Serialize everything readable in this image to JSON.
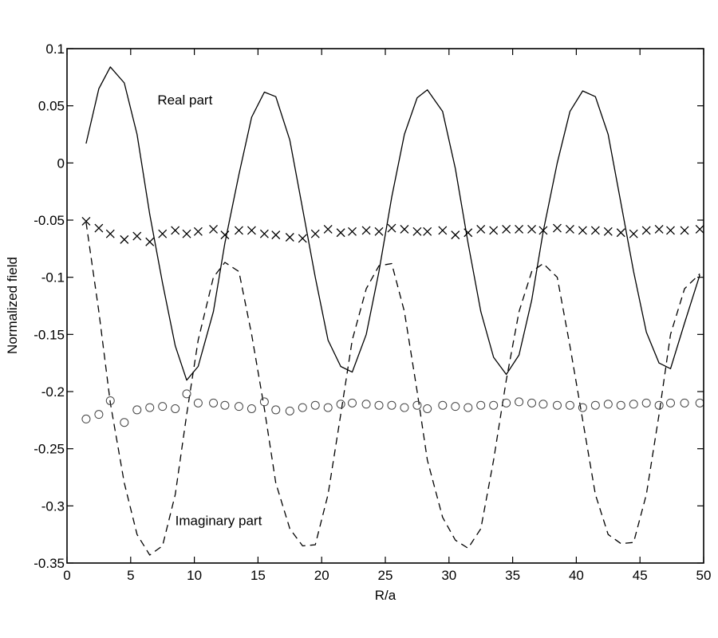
{
  "chart_data": {
    "type": "line",
    "title": "",
    "xlabel": "R/a",
    "ylabel": "Normalized field",
    "xlim": [
      0,
      50
    ],
    "ylim": [
      -0.35,
      0.1
    ],
    "xticks": [
      0,
      5,
      10,
      15,
      20,
      25,
      30,
      35,
      40,
      45,
      50
    ],
    "xtick_labels": [
      "0",
      "5",
      "10",
      "15",
      "20",
      "25",
      "30",
      "35",
      "40",
      "45",
      "50"
    ],
    "yticks": [
      0.1,
      0.05,
      0,
      -0.05,
      -0.1,
      -0.15,
      -0.2,
      -0.25,
      -0.3,
      -0.35
    ],
    "ytick_labels": [
      "0.1",
      "0.05",
      "0",
      "-0.05",
      "-0.1",
      "-0.15",
      "-0.2",
      "-0.25",
      "-0.3",
      "-0.35"
    ],
    "grid": false,
    "legend": null,
    "annotations": [
      {
        "text": "Real part",
        "x": 7.1,
        "y": 0.051
      },
      {
        "text": "Imaginary part",
        "x": 8.5,
        "y": -0.317
      }
    ],
    "x": [
      1.5,
      2.5,
      3.4,
      4.5,
      5.5,
      6.5,
      7.5,
      8.5,
      9.4,
      10.3,
      11.5,
      12.4,
      13.5,
      14.5,
      15.5,
      16.4,
      17.5,
      18.5,
      19.5,
      20.5,
      21.5,
      22.4,
      23.5,
      24.5,
      25.5,
      26.5,
      27.5,
      28.3,
      29.5,
      30.5,
      31.5,
      32.5,
      33.5,
      34.5,
      35.5,
      36.5,
      37.4,
      38.5,
      39.5,
      40.5,
      41.5,
      42.5,
      43.5,
      44.5,
      45.5,
      46.5,
      47.4,
      48.5,
      49.7
    ],
    "series": [
      {
        "name": "Real part",
        "style": "solid",
        "values": [
          0.017,
          0.065,
          0.084,
          0.07,
          0.025,
          -0.045,
          -0.105,
          -0.16,
          -0.19,
          -0.178,
          -0.13,
          -0.07,
          -0.01,
          0.04,
          0.062,
          0.058,
          0.02,
          -0.04,
          -0.1,
          -0.155,
          -0.178,
          -0.183,
          -0.15,
          -0.095,
          -0.03,
          0.025,
          0.057,
          0.064,
          0.045,
          -0.005,
          -0.07,
          -0.13,
          -0.17,
          -0.185,
          -0.168,
          -0.12,
          -0.06,
          0.0,
          0.045,
          0.063,
          0.058,
          0.025,
          -0.035,
          -0.095,
          -0.148,
          -0.175,
          -0.18,
          -0.14,
          -0.098
        ]
      },
      {
        "name": "Imaginary part",
        "style": "dashed",
        "values": [
          -0.052,
          -0.13,
          -0.21,
          -0.28,
          -0.325,
          -0.343,
          -0.335,
          -0.29,
          -0.22,
          -0.155,
          -0.1,
          -0.087,
          -0.095,
          -0.15,
          -0.215,
          -0.28,
          -0.32,
          -0.335,
          -0.334,
          -0.29,
          -0.22,
          -0.155,
          -0.11,
          -0.09,
          -0.088,
          -0.13,
          -0.2,
          -0.26,
          -0.31,
          -0.33,
          -0.337,
          -0.32,
          -0.26,
          -0.19,
          -0.13,
          -0.095,
          -0.088,
          -0.1,
          -0.16,
          -0.225,
          -0.29,
          -0.325,
          -0.333,
          -0.332,
          -0.29,
          -0.22,
          -0.15,
          -0.11,
          -0.097
        ]
      },
      {
        "name": "Real part (markers x)",
        "style": "x-markers",
        "values": [
          -0.051,
          -0.057,
          -0.062,
          -0.067,
          -0.064,
          -0.069,
          -0.062,
          -0.059,
          -0.062,
          -0.06,
          -0.058,
          -0.063,
          -0.059,
          -0.059,
          -0.062,
          -0.063,
          -0.065,
          -0.066,
          -0.062,
          -0.058,
          -0.061,
          -0.06,
          -0.059,
          -0.06,
          -0.057,
          -0.058,
          -0.06,
          -0.06,
          -0.059,
          -0.063,
          -0.061,
          -0.058,
          -0.059,
          -0.058,
          -0.058,
          -0.058,
          -0.059,
          -0.057,
          -0.058,
          -0.059,
          -0.059,
          -0.06,
          -0.061,
          -0.062,
          -0.059,
          -0.058,
          -0.059,
          -0.059,
          -0.058
        ]
      },
      {
        "name": "Imaginary part (markers o)",
        "style": "o-markers",
        "values": [
          -0.224,
          -0.22,
          -0.208,
          -0.227,
          -0.216,
          -0.214,
          -0.213,
          -0.215,
          -0.202,
          -0.21,
          -0.21,
          -0.212,
          -0.213,
          -0.215,
          -0.209,
          -0.216,
          -0.217,
          -0.214,
          -0.212,
          -0.214,
          -0.211,
          -0.21,
          -0.211,
          -0.212,
          -0.212,
          -0.214,
          -0.212,
          -0.215,
          -0.212,
          -0.213,
          -0.214,
          -0.212,
          -0.212,
          -0.21,
          -0.209,
          -0.21,
          -0.211,
          -0.212,
          -0.212,
          -0.214,
          -0.212,
          -0.211,
          -0.212,
          -0.211,
          -0.21,
          -0.212,
          -0.21,
          -0.21,
          -0.21
        ]
      }
    ]
  }
}
